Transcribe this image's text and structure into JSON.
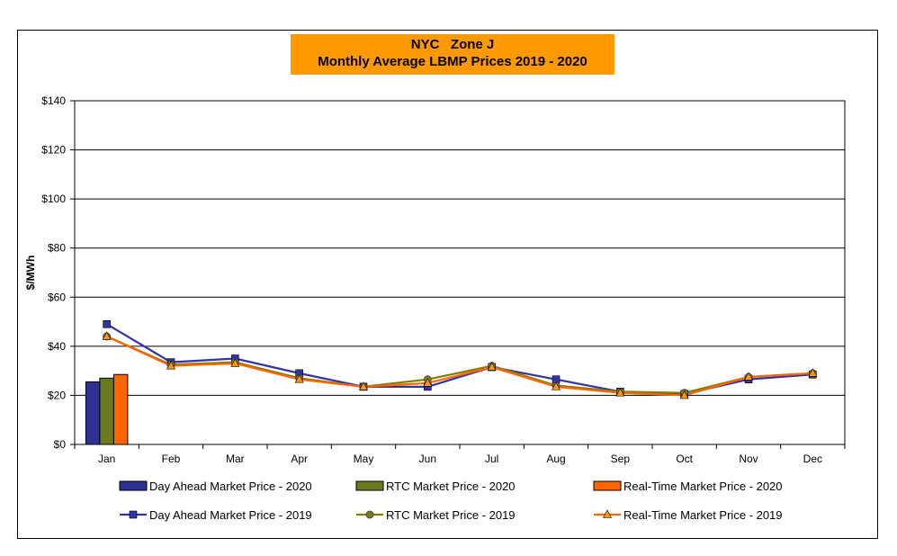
{
  "chart_data": {
    "type": "bar+line",
    "title": "NYC   Zone J",
    "subtitle": "Monthly Average LBMP Prices 2019 - 2020",
    "ylabel": "$/MWh",
    "xlabel": "",
    "ylim": [
      0,
      140
    ],
    "yticks": [
      0,
      20,
      40,
      60,
      80,
      100,
      120,
      140
    ],
    "ytick_labels": [
      "$0",
      "$20",
      "$40",
      "$60",
      "$80",
      "$100",
      "$120",
      "$140"
    ],
    "grid": "horizontal",
    "legend_position": "bottom",
    "categories": [
      "Jan",
      "Feb",
      "Mar",
      "Apr",
      "May",
      "Jun",
      "Jul",
      "Aug",
      "Sep",
      "Oct",
      "Nov",
      "Dec"
    ],
    "bar_series": [
      {
        "name": "Day Ahead Market Price - 2020",
        "color": "#2e3192",
        "values": [
          25.5
        ]
      },
      {
        "name": "RTC Market Price - 2020",
        "color": "#6b7a1e",
        "values": [
          27
        ]
      },
      {
        "name": "Real-Time Market Price - 2020",
        "color": "#ff6600",
        "values": [
          28.5
        ]
      }
    ],
    "line_series": [
      {
        "name": "Day Ahead Market Price - 2019",
        "color": "#3333a6",
        "marker": "square",
        "values": [
          49,
          33.5,
          35,
          29,
          23.5,
          23.5,
          31.5,
          26.5,
          21.5,
          20.5,
          26.5,
          28.5
        ]
      },
      {
        "name": "RTC Market Price - 2019",
        "color": "#808000",
        "marker": "circle",
        "values": [
          44,
          32.5,
          33.5,
          27,
          23.5,
          26.5,
          32,
          24,
          21.5,
          21,
          27.5,
          29
        ]
      },
      {
        "name": "Real-Time Market Price - 2019",
        "color": "#ff6600",
        "marker": "triangle",
        "values": [
          44,
          32,
          33,
          26.5,
          23.5,
          25,
          31.5,
          23.5,
          21,
          20,
          27.5,
          29
        ]
      }
    ]
  }
}
